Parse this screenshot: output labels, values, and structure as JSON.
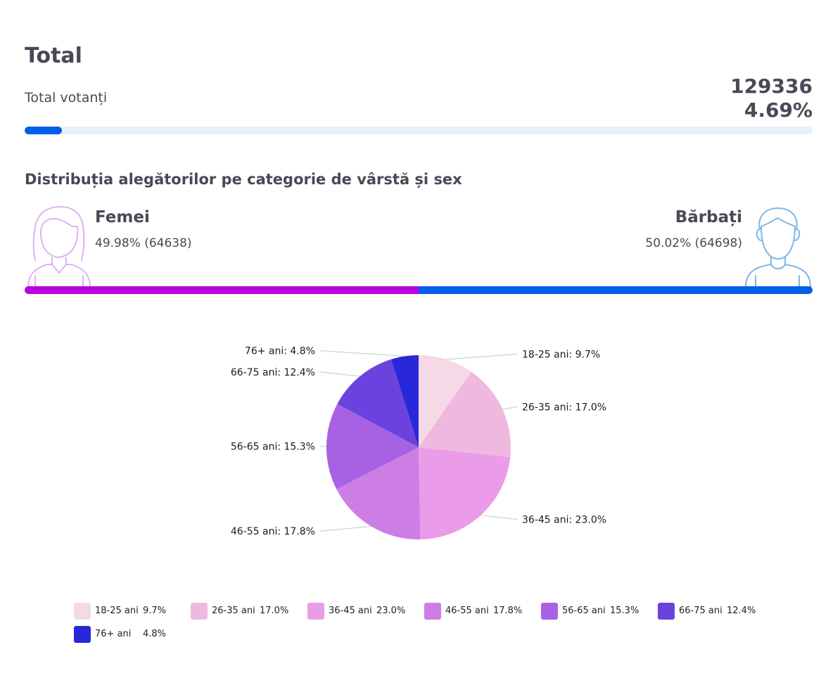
{
  "header": {
    "title": "Total",
    "total_label": "Total votanți",
    "total_count": "129336",
    "total_percent": "4.69%",
    "progress_fraction": 0.0469,
    "progress_color": "#005ee8",
    "progress_track_color": "#e8f0f9"
  },
  "gender": {
    "section_title": "Distribuția alegătorilor pe categorie de vârstă și sex",
    "female": {
      "label": "Femei",
      "value": "49.98% (64638)",
      "share": 49.98,
      "color": "#bb00dd",
      "icon": "woman-avatar-icon",
      "icon_color": "#dcb3f3"
    },
    "male": {
      "label": "Bărbați",
      "value": "50.02% (64698)",
      "share": 50.02,
      "color": "#005ee8",
      "icon": "man-avatar-icon",
      "icon_color": "#7fb6ea"
    }
  },
  "chart_data": {
    "type": "pie",
    "categories": [
      "18-25 ani",
      "26-35 ani",
      "36-45 ani",
      "46-55 ani",
      "56-65 ani",
      "66-75 ani",
      "76+ ani"
    ],
    "values": [
      9.7,
      17.0,
      23.0,
      17.8,
      15.3,
      12.4,
      4.8
    ],
    "labels": [
      "18-25 ani: 9.7%",
      "26-35 ani: 17.0%",
      "36-45 ani: 23.0%",
      "46-55 ani: 17.8%",
      "56-65 ani: 15.3%",
      "66-75 ani: 12.4%",
      "76+ ani: 4.8%"
    ],
    "legend_values": [
      "9.7%",
      "17.0%",
      "23.0%",
      "17.8%",
      "15.3%",
      "12.4%",
      "4.8%"
    ],
    "colors": [
      "#f5d9e6",
      "#efb9df",
      "#eb9ce9",
      "#cd7ee6",
      "#a662e3",
      "#6b42de",
      "#2828d9"
    ],
    "legend_position": "bottom"
  }
}
